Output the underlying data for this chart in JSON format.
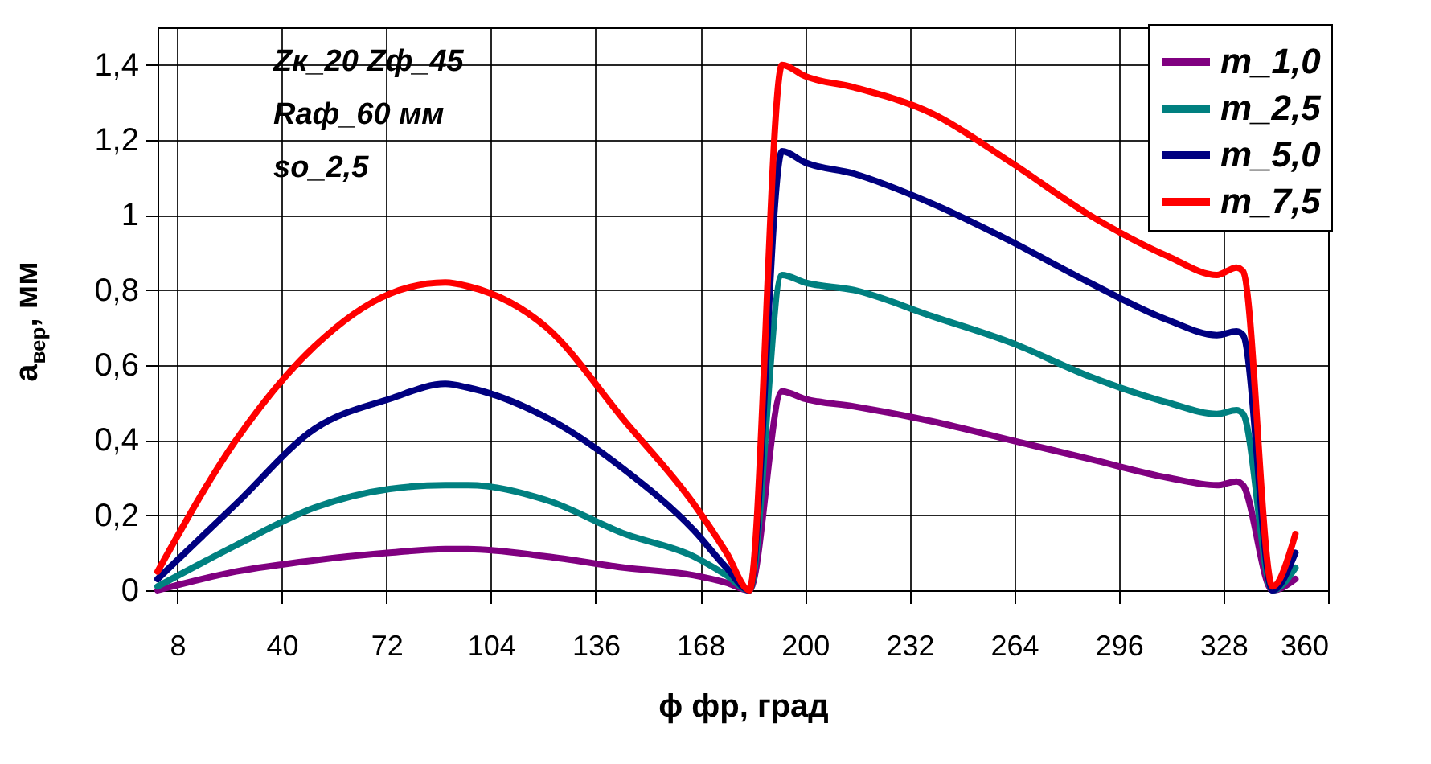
{
  "chart_data": {
    "type": "line",
    "xlabel": "ϕ  фр, град",
    "ylabel": "a$_{вер}$, мм",
    "annotations": [
      "Zк_20  Zф_45",
      "Raф_60 мм",
      "so_2,5"
    ],
    "x": [
      2,
      26,
      50,
      73,
      90,
      97,
      121,
      145,
      166,
      176,
      183,
      193,
      200,
      215,
      239,
      263,
      287,
      311,
      326,
      332,
      334,
      343,
      350
    ],
    "series": [
      {
        "name": "m_1,0",
        "color": "#800080",
        "values": [
          0,
          0.05,
          0.08,
          0.1,
          0.11,
          0.11,
          0.09,
          0.06,
          0.04,
          0.02,
          0,
          0.53,
          0.51,
          0.49,
          0.45,
          0.4,
          0.35,
          0.3,
          0.28,
          0.29,
          0.28,
          0,
          0.03
        ]
      },
      {
        "name": "m_2,5",
        "color": "#008080",
        "values": [
          0.01,
          0.12,
          0.22,
          0.27,
          0.28,
          0.28,
          0.24,
          0.15,
          0.09,
          0.04,
          0,
          0.84,
          0.82,
          0.8,
          0.73,
          0.66,
          0.57,
          0.5,
          0.47,
          0.48,
          0.47,
          0,
          0.06
        ]
      },
      {
        "name": "m_5,0",
        "color": "#000080",
        "values": [
          0.03,
          0.23,
          0.43,
          0.51,
          0.55,
          0.54,
          0.46,
          0.32,
          0.16,
          0.06,
          0,
          1.17,
          1.14,
          1.11,
          1.03,
          0.93,
          0.82,
          0.72,
          0.68,
          0.69,
          0.68,
          0,
          0.1
        ]
      },
      {
        "name": "m_7,5",
        "color": "#ff0000",
        "values": [
          0.05,
          0.4,
          0.65,
          0.79,
          0.82,
          0.81,
          0.7,
          0.45,
          0.23,
          0.1,
          0,
          1.4,
          1.37,
          1.34,
          1.27,
          1.14,
          1.0,
          0.89,
          0.84,
          0.86,
          0.85,
          0.01,
          0.15
        ]
      }
    ],
    "xlim": [
      2,
      360
    ],
    "xticks": [
      8,
      40,
      72,
      104,
      136,
      168,
      200,
      232,
      264,
      296,
      328,
      360
    ],
    "ylim": [
      0,
      1.5
    ],
    "yticks": [
      {
        "value": 0,
        "label": "0"
      },
      {
        "value": 0.2,
        "label": "0,2"
      },
      {
        "value": 0.4,
        "label": "0,4"
      },
      {
        "value": 0.6,
        "label": "0,6"
      },
      {
        "value": 0.8,
        "label": "0,8"
      },
      {
        "value": 1,
        "label": "1"
      },
      {
        "value": 1.2,
        "label": "1,2"
      },
      {
        "value": 1.4,
        "label": "1,4"
      }
    ],
    "grid": true,
    "legend": "top right",
    "line_style": "solid",
    "marker": "none"
  }
}
